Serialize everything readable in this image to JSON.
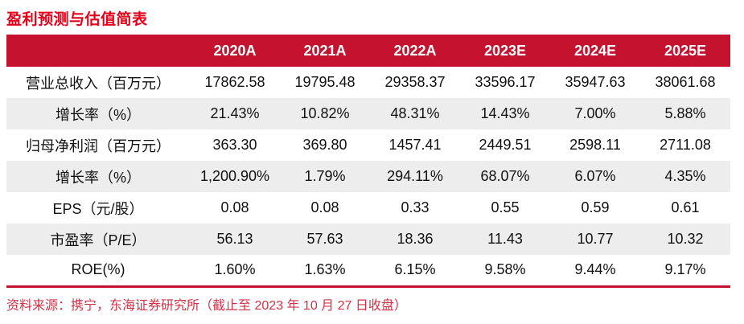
{
  "title": "盈利预测与估值简表",
  "table": {
    "columns": [
      "2020A",
      "2021A",
      "2022A",
      "2023E",
      "2024E",
      "2025E"
    ],
    "rows": [
      {
        "label": "营业总收入（百万元）",
        "values": [
          "17862.58",
          "19795.48",
          "29358.37",
          "33596.17",
          "35947.63",
          "38061.68"
        ]
      },
      {
        "label": "增长率（%）",
        "values": [
          "21.43%",
          "10.82%",
          "48.31%",
          "14.43%",
          "7.00%",
          "5.88%"
        ]
      },
      {
        "label": "归母净利润（百万元）",
        "values": [
          "363.30",
          "369.80",
          "1457.41",
          "2449.51",
          "2598.11",
          "2711.08"
        ]
      },
      {
        "label": "增长率（%）",
        "values": [
          "1,200.90%",
          "1.79%",
          "294.11%",
          "68.07%",
          "6.07%",
          "4.35%"
        ]
      },
      {
        "label": "EPS（元/股）",
        "values": [
          "0.08",
          "0.08",
          "0.33",
          "0.55",
          "0.59",
          "0.61"
        ]
      },
      {
        "label": "市盈率（P/E）",
        "values": [
          "56.13",
          "57.63",
          "18.36",
          "11.43",
          "10.77",
          "10.32"
        ]
      },
      {
        "label": "ROE(%)",
        "values": [
          "1.60%",
          "1.63%",
          "6.15%",
          "9.58%",
          "9.44%",
          "9.17%"
        ]
      }
    ]
  },
  "footer": {
    "source_text": "资料来源：携宁，东海证券研究所（截止至 2023 年 10 月 27 日收盘）"
  },
  "colors": {
    "title_red": "#e2001a",
    "header_bg": "#c4122f",
    "header_text": "#ffffff",
    "stripe_gray": "#ededed",
    "rule_red": "#c4122f",
    "footer_text_red": "#cd3448",
    "bottom_line_red": "#e2001a"
  }
}
